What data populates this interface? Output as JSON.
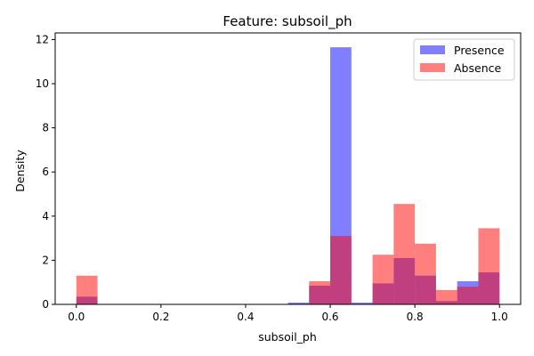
{
  "chart_data": {
    "type": "bar",
    "title": "Feature: subsoil_ph",
    "xlabel": "subsoil_ph",
    "ylabel": "Density",
    "xlim": [
      -0.05,
      1.05
    ],
    "ylim": [
      0,
      12.3
    ],
    "xticks": [
      0.0,
      0.2,
      0.4,
      0.6,
      0.8,
      1.0
    ],
    "xtick_labels": [
      "0.0",
      "0.2",
      "0.4",
      "0.6",
      "0.8",
      "1.0"
    ],
    "yticks": [
      0,
      2,
      4,
      6,
      8,
      10,
      12
    ],
    "ytick_labels": [
      "0",
      "2",
      "4",
      "6",
      "8",
      "10",
      "12"
    ],
    "bin_edges": [
      0.0,
      0.05,
      0.1,
      0.15,
      0.2,
      0.25,
      0.3,
      0.35,
      0.4,
      0.45,
      0.5,
      0.55,
      0.6,
      0.65,
      0.7,
      0.75,
      0.8,
      0.85,
      0.9,
      0.95,
      1.0
    ],
    "legend_position": "top-right",
    "grid": false,
    "series": [
      {
        "name": "Presence",
        "color": "#0000ff",
        "opacity": 0.5,
        "values": [
          0.35,
          0,
          0,
          0,
          0,
          0,
          0,
          0,
          0,
          0,
          0.08,
          0.85,
          11.65,
          0.08,
          0.95,
          2.1,
          1.3,
          0.15,
          1.05,
          1.45
        ]
      },
      {
        "name": "Absence",
        "color": "#ff0000",
        "opacity": 0.5,
        "values": [
          1.3,
          0,
          0,
          0,
          0,
          0,
          0,
          0,
          0,
          0,
          0,
          1.05,
          3.1,
          0,
          2.25,
          4.55,
          2.75,
          0.65,
          0.8,
          3.45
        ]
      }
    ]
  }
}
